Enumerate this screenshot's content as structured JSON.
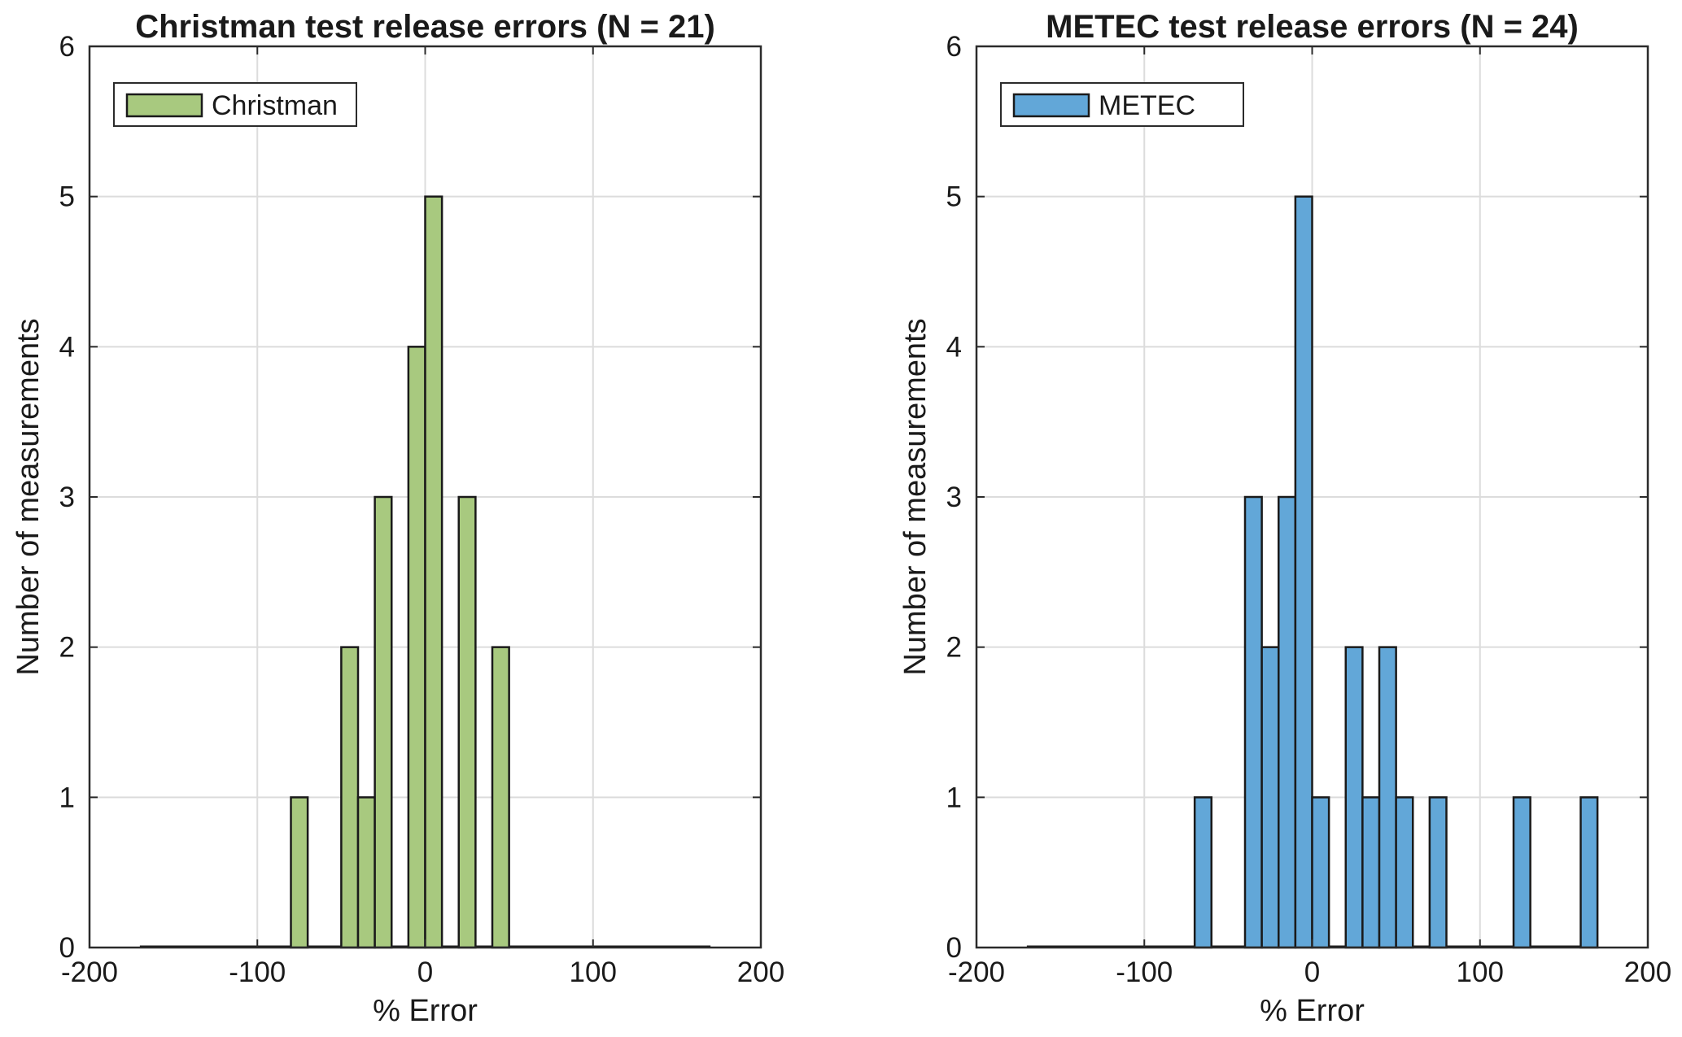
{
  "chart_data": [
    {
      "type": "bar",
      "title": "Christman test release errors (N = 21)",
      "xlabel": "% Error",
      "ylabel": "Number of measurements",
      "xlim": [
        -200,
        200
      ],
      "ylim": [
        0,
        6
      ],
      "xticks": [
        -200,
        -100,
        0,
        100,
        200
      ],
      "yticks": [
        0,
        1,
        2,
        3,
        4,
        5,
        6
      ],
      "grid": true,
      "legend_position": "top-left",
      "bin_width": 10,
      "series": [
        {
          "name": "Christman",
          "color": "#a8c97f",
          "bins": [
            {
              "x0": -80,
              "x1": -70,
              "count": 1
            },
            {
              "x0": -50,
              "x1": -40,
              "count": 2
            },
            {
              "x0": -40,
              "x1": -30,
              "count": 1
            },
            {
              "x0": -30,
              "x1": -20,
              "count": 3
            },
            {
              "x0": -10,
              "x1": 0,
              "count": 4
            },
            {
              "x0": 0,
              "x1": 10,
              "count": 5
            },
            {
              "x0": 20,
              "x1": 30,
              "count": 3
            },
            {
              "x0": 40,
              "x1": 50,
              "count": 2
            }
          ],
          "baseline_range": [
            -170,
            170
          ]
        }
      ]
    },
    {
      "type": "bar",
      "title": "METEC test release errors (N = 24)",
      "xlabel": "% Error",
      "ylabel": "Number of measurements",
      "xlim": [
        -200,
        200
      ],
      "ylim": [
        0,
        6
      ],
      "xticks": [
        -200,
        -100,
        0,
        100,
        200
      ],
      "yticks": [
        0,
        1,
        2,
        3,
        4,
        5,
        6
      ],
      "grid": true,
      "legend_position": "top-left",
      "bin_width": 10,
      "series": [
        {
          "name": "METEC",
          "color": "#62a7d8",
          "bins": [
            {
              "x0": -70,
              "x1": -60,
              "count": 1
            },
            {
              "x0": -40,
              "x1": -30,
              "count": 3
            },
            {
              "x0": -30,
              "x1": -20,
              "count": 2
            },
            {
              "x0": -20,
              "x1": -10,
              "count": 3
            },
            {
              "x0": -10,
              "x1": 0,
              "count": 5
            },
            {
              "x0": 0,
              "x1": 10,
              "count": 1
            },
            {
              "x0": 20,
              "x1": 30,
              "count": 2
            },
            {
              "x0": 30,
              "x1": 40,
              "count": 1
            },
            {
              "x0": 40,
              "x1": 50,
              "count": 2
            },
            {
              "x0": 50,
              "x1": 60,
              "count": 1
            },
            {
              "x0": 70,
              "x1": 80,
              "count": 1
            },
            {
              "x0": 120,
              "x1": 130,
              "count": 1
            },
            {
              "x0": 160,
              "x1": 170,
              "count": 1
            }
          ],
          "baseline_range": [
            -170,
            170
          ]
        }
      ]
    }
  ]
}
